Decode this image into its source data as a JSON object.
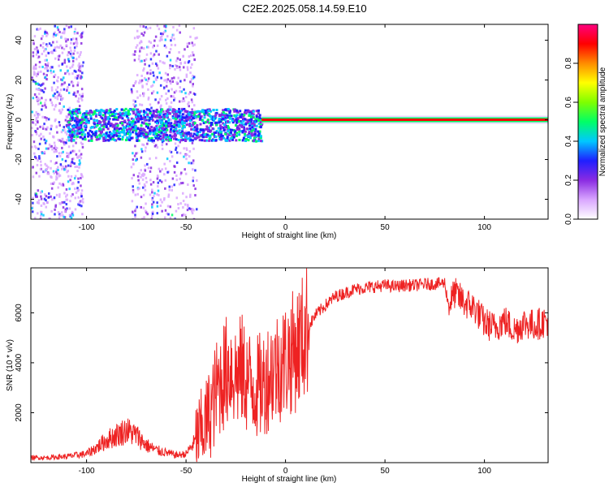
{
  "title": "C2E2.2025.058.14.59.E10",
  "chart_data": [
    {
      "type": "heatmap",
      "xlabel": "Height of straight line (km)",
      "ylabel": "Frequency (Hz)",
      "xlim": [
        -128,
        132
      ],
      "ylim": [
        -50,
        48
      ],
      "x_ticks": [
        -100,
        -50,
        0,
        50,
        100
      ],
      "y_ticks": [
        -40,
        -20,
        0,
        20,
        40
      ],
      "colorbar": {
        "label": "Normalized spectral amplitude",
        "range": [
          0,
          1
        ],
        "ticks": [
          "0.0",
          "0.2",
          "0.4",
          "0.6",
          "0.8"
        ],
        "colors": [
          "#ffffff",
          "#d9a6ff",
          "#8a2be2",
          "#1f1fff",
          "#00c8ff",
          "#00ff66",
          "#7fff00",
          "#ffff00",
          "#ff8c00",
          "#ff0000",
          "#ff0080"
        ]
      },
      "features": [
        {
          "name": "broadband noise columns",
          "x_ranges": [
            [
              -128,
              -102
            ],
            [
              -78,
              -45
            ]
          ],
          "amplitude": 0.15
        },
        {
          "name": "signal band",
          "x_range": [
            -110,
            -12
          ],
          "freq_range": [
            -10,
            6
          ],
          "amplitude": 0.35
        },
        {
          "name": "carrier line",
          "x_range": [
            -12,
            132
          ],
          "frequency": 0,
          "amplitude": 0.9
        }
      ]
    },
    {
      "type": "line",
      "xlabel": "Height of straight line (km)",
      "ylabel": "SNR (10 * v/v)",
      "xlim": [
        -128,
        132
      ],
      "ylim": [
        0,
        7800
      ],
      "x_ticks": [
        -100,
        -50,
        0,
        50,
        100
      ],
      "y_ticks": [
        2000,
        4000,
        6000
      ],
      "color": "#ee2222",
      "x": [
        -128,
        -120,
        -110,
        -100,
        -95,
        -90,
        -85,
        -80,
        -75,
        -70,
        -65,
        -60,
        -55,
        -50,
        -45,
        -40,
        -37,
        -35,
        -32,
        -30,
        -28,
        -25,
        -22,
        -20,
        -18,
        -15,
        -12,
        -10,
        -8,
        -5,
        -2,
        0,
        2,
        5,
        8,
        10,
        12,
        15,
        20,
        25,
        30,
        35,
        40,
        45,
        50,
        55,
        60,
        65,
        70,
        75,
        80,
        82,
        85,
        90,
        95,
        100,
        105,
        110,
        115,
        120,
        125,
        132
      ],
      "y": [
        200,
        200,
        250,
        350,
        600,
        900,
        1100,
        1300,
        1100,
        700,
        500,
        400,
        300,
        350,
        900,
        1600,
        2200,
        2800,
        3400,
        3600,
        3900,
        3500,
        3700,
        3400,
        3200,
        3000,
        3100,
        3300,
        3600,
        3800,
        4000,
        4100,
        4300,
        4500,
        4900,
        5200,
        5500,
        5900,
        6300,
        6650,
        6800,
        6950,
        7000,
        7050,
        7100,
        7050,
        7100,
        7100,
        7150,
        7150,
        7200,
        6300,
        6800,
        6400,
        6200,
        5600,
        5400,
        5700,
        5300,
        5600,
        5500,
        5700
      ]
    }
  ]
}
